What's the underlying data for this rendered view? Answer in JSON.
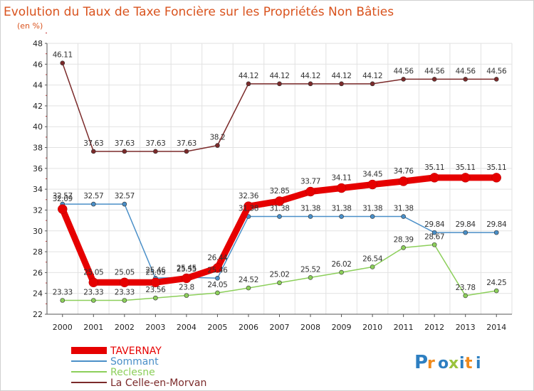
{
  "chart_data": {
    "type": "line",
    "title": "Evolution du Taux de Taxe Foncière sur les Propriétés Non Bâties",
    "subtitle": "(en %)",
    "x": [
      2000,
      2001,
      2002,
      2003,
      2004,
      2005,
      2006,
      2007,
      2008,
      2009,
      2010,
      2011,
      2012,
      2013,
      2014
    ],
    "ylim": [
      22,
      48
    ],
    "yticks": [
      22,
      24,
      26,
      28,
      30,
      32,
      34,
      36,
      38,
      40,
      42,
      44,
      46,
      48
    ],
    "grid": true,
    "series": [
      {
        "name": "La Celle-en-Morvan",
        "color": "#7b2a2a",
        "values": [
          46.11,
          37.63,
          37.63,
          37.63,
          37.63,
          38.2,
          44.12,
          44.12,
          44.12,
          44.12,
          44.12,
          44.56,
          44.56,
          44.56,
          44.56
        ],
        "labels": [
          "46.11",
          "37.63",
          "37.63",
          "37.63",
          "37.63",
          "38.2",
          "44.12",
          "44.12",
          "44.12",
          "44.12",
          "44.12",
          "44.56",
          "44.56",
          "44.56",
          "44.56"
        ]
      },
      {
        "name": "Sommant",
        "color": "#4a8fc8",
        "values": [
          32.57,
          32.57,
          32.57,
          25.46,
          25.55,
          25.46,
          31.38,
          31.38,
          31.38,
          31.38,
          31.38,
          31.38,
          29.84,
          29.84,
          29.84
        ],
        "labels": [
          "32.57",
          "32.57",
          "32.57",
          "25.46",
          "25.55",
          "25.46",
          "31.38",
          "31.38",
          "31.38",
          "31.38",
          "31.38",
          "31.38",
          "29.84",
          "29.84",
          "29.84"
        ]
      },
      {
        "name": "Reclesne",
        "color": "#8ccf5a",
        "values": [
          23.33,
          23.33,
          23.33,
          23.56,
          23.8,
          24.05,
          24.52,
          25.02,
          25.52,
          26.02,
          26.54,
          28.39,
          28.67,
          23.78,
          24.25
        ],
        "labels": [
          "23.33",
          "23.33",
          "23.33",
          "23.56",
          "23.8",
          "24.05",
          "24.52",
          "25.02",
          "25.52",
          "26.02",
          "26.54",
          "28.39",
          "28.67",
          "23.78",
          "24.25"
        ]
      },
      {
        "name": "TAVERNAY",
        "color": "#e60000",
        "values": [
          32.09,
          25.05,
          25.05,
          25.05,
          25.45,
          26.44,
          32.36,
          32.85,
          33.77,
          34.11,
          34.45,
          34.76,
          35.11,
          35.11,
          35.11
        ],
        "labels": [
          "32.09",
          "25.05",
          "25.05",
          "25.05",
          "25.45",
          "26.44",
          "32.36",
          "32.85",
          "33.77",
          "34.11",
          "34.45",
          "34.76",
          "35.11",
          "35.11",
          "35.11"
        ]
      }
    ],
    "legend": [
      "TAVERNAY",
      "Sommant",
      "Reclesne",
      "La Celle-en-Morvan"
    ],
    "legend_position": "bottom-left"
  },
  "watermark": {
    "text": "Proxiti"
  }
}
